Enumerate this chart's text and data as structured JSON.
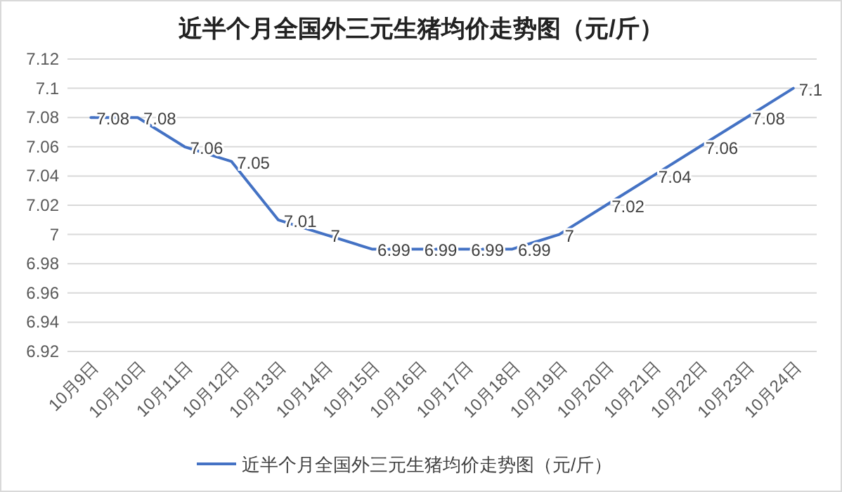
{
  "chart_data": {
    "type": "line",
    "title": "近半个月全国外三元生猪均价走势图（元/斤）",
    "categories": [
      "10月9日",
      "10月10日",
      "10月11日",
      "10月12日",
      "10月13日",
      "10月14日",
      "10月15日",
      "10月16日",
      "10月17日",
      "10月18日",
      "10月19日",
      "10月20日",
      "10月21日",
      "10月22日",
      "10月23日",
      "10月24日"
    ],
    "series": [
      {
        "name": "近半个月全国外三元生猪均价走势图（元/斤）",
        "color": "#4472c4",
        "values": [
          7.08,
          7.08,
          7.06,
          7.05,
          7.01,
          7,
          6.99,
          6.99,
          6.99,
          6.99,
          7,
          7.02,
          7.04,
          7.06,
          7.08,
          7.1
        ]
      }
    ],
    "ylim": [
      6.92,
      7.12
    ],
    "yticks": [
      6.92,
      6.94,
      6.96,
      6.98,
      7,
      7.02,
      7.04,
      7.06,
      7.08,
      7.1,
      7.12
    ],
    "grid": "y",
    "legend": "bottom",
    "data_labels": true,
    "marker": "none",
    "line_style": "solid"
  }
}
